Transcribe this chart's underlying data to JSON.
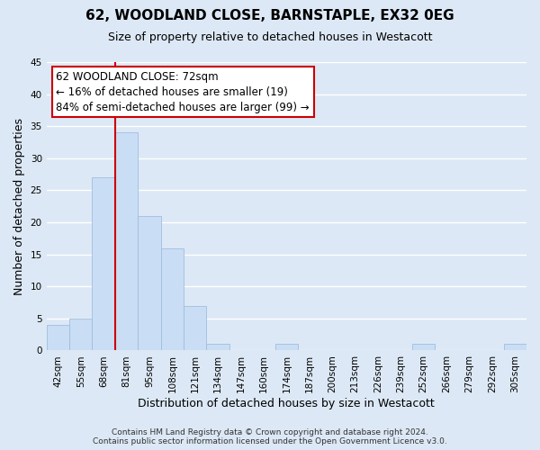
{
  "title": "62, WOODLAND CLOSE, BARNSTAPLE, EX32 0EG",
  "subtitle": "Size of property relative to detached houses in Westacott",
  "xlabel": "Distribution of detached houses by size in Westacott",
  "ylabel": "Number of detached properties",
  "bin_labels": [
    "42sqm",
    "55sqm",
    "68sqm",
    "81sqm",
    "95sqm",
    "108sqm",
    "121sqm",
    "134sqm",
    "147sqm",
    "160sqm",
    "174sqm",
    "187sqm",
    "200sqm",
    "213sqm",
    "226sqm",
    "239sqm",
    "252sqm",
    "266sqm",
    "279sqm",
    "292sqm",
    "305sqm"
  ],
  "bar_heights": [
    4,
    5,
    27,
    34,
    21,
    16,
    7,
    1,
    0,
    0,
    1,
    0,
    0,
    0,
    0,
    0,
    1,
    0,
    0,
    0,
    1
  ],
  "bar_color": "#c9ddf5",
  "bar_edge_color": "#a0bede",
  "vline_color": "#cc0000",
  "vline_position": 2.5,
  "ylim": [
    0,
    45
  ],
  "yticks": [
    0,
    5,
    10,
    15,
    20,
    25,
    30,
    35,
    40,
    45
  ],
  "annotation_line1": "62 WOODLAND CLOSE: 72sqm",
  "annotation_line2": "← 16% of detached houses are smaller (19)",
  "annotation_line3": "84% of semi-detached houses are larger (99) →",
  "annotation_box_facecolor": "#ffffff",
  "annotation_box_edgecolor": "#cc0000",
  "footer_line1": "Contains HM Land Registry data © Crown copyright and database right 2024.",
  "footer_line2": "Contains public sector information licensed under the Open Government Licence v3.0.",
  "background_color": "#dce8f5",
  "grid_color": "#ffffff",
  "title_fontsize": 11,
  "subtitle_fontsize": 9,
  "axis_label_fontsize": 9,
  "tick_fontsize": 7.5,
  "annotation_fontsize": 8.5,
  "footer_fontsize": 6.5
}
